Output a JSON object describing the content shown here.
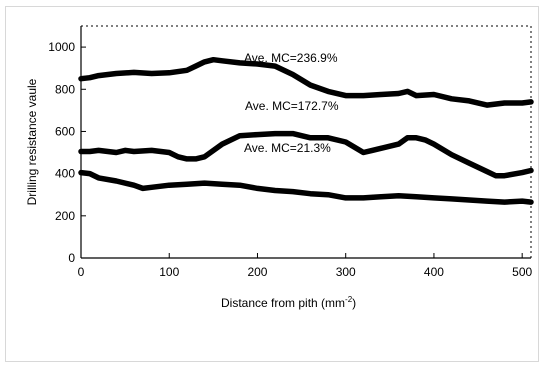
{
  "chart_data": {
    "type": "line",
    "xlabel": "Distance from pith (mm",
    "xlabel_sup": "-2",
    "xlabel_end": ")",
    "ylabel": "Drilling resistance vaule",
    "xlim": [
      0,
      510
    ],
    "ylim": [
      0,
      1100
    ],
    "xticks": [
      0,
      100,
      200,
      300,
      400,
      500
    ],
    "yticks": [
      0,
      200,
      400,
      600,
      800,
      1000
    ],
    "grid": false,
    "series": [
      {
        "name": "Ave. MC=236.9%",
        "x": [
          0,
          10,
          20,
          40,
          60,
          80,
          100,
          120,
          130,
          140,
          150,
          160,
          180,
          200,
          220,
          240,
          260,
          280,
          300,
          320,
          340,
          360,
          370,
          380,
          400,
          420,
          440,
          460,
          480,
          500,
          510
        ],
        "y": [
          850,
          855,
          865,
          875,
          880,
          875,
          878,
          890,
          910,
          930,
          940,
          935,
          925,
          920,
          910,
          870,
          820,
          790,
          770,
          770,
          775,
          780,
          790,
          770,
          775,
          755,
          745,
          725,
          735,
          735,
          740
        ]
      },
      {
        "name": "Ave. MC=172.7%",
        "x": [
          0,
          10,
          20,
          40,
          50,
          60,
          80,
          100,
          110,
          120,
          130,
          140,
          160,
          180,
          200,
          220,
          240,
          250,
          260,
          280,
          300,
          320,
          330,
          340,
          360,
          370,
          380,
          390,
          400,
          420,
          440,
          460,
          470,
          480,
          500,
          510
        ],
        "y": [
          505,
          505,
          510,
          500,
          510,
          505,
          510,
          500,
          480,
          470,
          470,
          480,
          540,
          580,
          585,
          590,
          590,
          580,
          570,
          570,
          550,
          500,
          510,
          520,
          540,
          570,
          570,
          560,
          540,
          490,
          450,
          410,
          390,
          390,
          405,
          415
        ]
      },
      {
        "name": "Ave. MC=21.3%",
        "x": [
          0,
          10,
          20,
          40,
          60,
          70,
          80,
          100,
          120,
          140,
          160,
          180,
          200,
          220,
          240,
          260,
          280,
          300,
          320,
          340,
          360,
          380,
          400,
          420,
          440,
          460,
          480,
          500,
          510
        ],
        "y": [
          405,
          400,
          380,
          365,
          345,
          330,
          335,
          345,
          350,
          355,
          350,
          345,
          330,
          320,
          315,
          305,
          300,
          285,
          285,
          290,
          295,
          290,
          285,
          280,
          275,
          270,
          265,
          270,
          265
        ]
      }
    ],
    "annotations": [
      "Ave. MC=236.9%",
      "Ave. MC=172.7%",
      "Ave. MC=21.3%"
    ]
  }
}
